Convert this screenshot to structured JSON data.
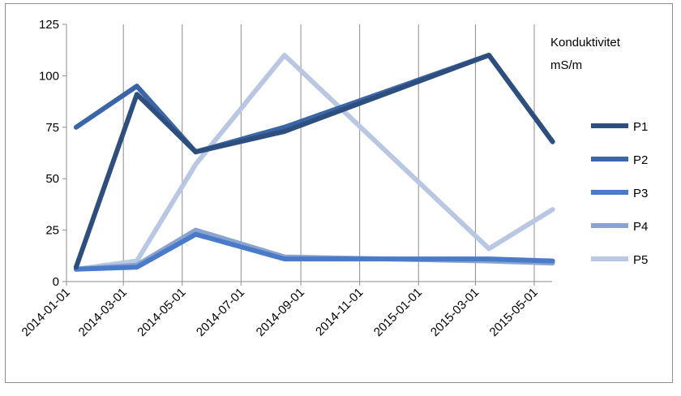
{
  "chart_data": {
    "type": "line",
    "title": "",
    "ylabel_lines": [
      "Konduktivitet",
      "mS/m"
    ],
    "xlabel": "",
    "x_tick_labels": [
      "2014-01-01",
      "2014-03-01",
      "2014-05-01",
      "2014-07-01",
      "2014-09-01",
      "2014-11-01",
      "2015-01-01",
      "2015-03-01",
      "2015-05-01"
    ],
    "ylim": [
      0,
      125
    ],
    "y_ticks": [
      0,
      25,
      50,
      75,
      100,
      125
    ],
    "grid": {
      "vertical": true,
      "horizontal": false
    },
    "legend_position": "right",
    "series": [
      {
        "name": "P1",
        "color": "#2e4e7e",
        "points": [
          [
            "2014-01-11",
            7
          ],
          [
            "2014-03-15",
            91
          ],
          [
            "2014-05-15",
            63
          ],
          [
            "2014-08-15",
            73
          ],
          [
            "2015-03-15",
            110
          ],
          [
            "2015-05-20",
            68
          ]
        ]
      },
      {
        "name": "P2",
        "color": "#3a65a8",
        "points": [
          [
            "2014-01-11",
            75
          ],
          [
            "2014-03-15",
            95
          ],
          [
            "2014-05-15",
            63
          ],
          [
            "2014-08-15",
            75
          ],
          [
            "2015-03-15",
            110
          ],
          [
            "2015-05-20",
            68
          ]
        ]
      },
      {
        "name": "P3",
        "color": "#4a7bc8",
        "points": [
          [
            "2014-01-11",
            6
          ],
          [
            "2014-03-15",
            7
          ],
          [
            "2014-05-15",
            23
          ],
          [
            "2014-08-15",
            11
          ],
          [
            "2015-03-15",
            11
          ],
          [
            "2015-05-20",
            10
          ]
        ]
      },
      {
        "name": "P4",
        "color": "#8aa3d0",
        "points": [
          [
            "2014-01-11",
            6
          ],
          [
            "2014-03-15",
            8
          ],
          [
            "2014-05-15",
            25
          ],
          [
            "2014-08-15",
            12
          ],
          [
            "2015-03-15",
            10
          ],
          [
            "2015-05-20",
            9
          ]
        ]
      },
      {
        "name": "P5",
        "color": "#b9c7e2",
        "points": [
          [
            "2014-01-11",
            6
          ],
          [
            "2014-03-15",
            10
          ],
          [
            "2014-05-15",
            57
          ],
          [
            "2014-08-15",
            110
          ],
          [
            "2015-03-15",
            16
          ],
          [
            "2015-05-20",
            35
          ]
        ]
      }
    ]
  }
}
